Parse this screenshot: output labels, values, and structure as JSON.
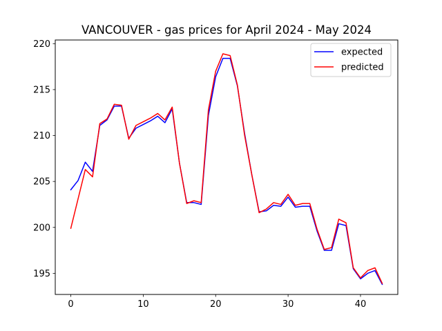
{
  "chart_data": {
    "type": "line",
    "title": "VANCOUVER - gas prices for April 2024 - May 2024",
    "xlabel": "",
    "ylabel": "",
    "xlim": [
      -2.15,
      45.15
    ],
    "ylim": [
      192.7,
      220.4
    ],
    "xticks": [
      0,
      10,
      20,
      30,
      40
    ],
    "yticks": [
      195,
      200,
      205,
      210,
      215,
      220
    ],
    "grid": false,
    "legend_position": "top-right",
    "x": [
      0,
      1,
      2,
      3,
      4,
      5,
      6,
      7,
      8,
      9,
      10,
      11,
      12,
      13,
      14,
      15,
      16,
      17,
      18,
      19,
      20,
      21,
      22,
      23,
      24,
      25,
      26,
      27,
      28,
      29,
      30,
      31,
      32,
      33,
      34,
      35,
      36,
      37,
      38,
      39,
      40,
      41,
      42,
      43
    ],
    "series": [
      {
        "name": "expected",
        "color": "#0000ff",
        "values": [
          204.1,
          205.1,
          207.1,
          206.1,
          211.1,
          211.7,
          213.2,
          213.2,
          209.7,
          210.8,
          211.2,
          211.6,
          212.1,
          211.4,
          212.9,
          207.0,
          202.7,
          202.7,
          202.5,
          212.2,
          216.4,
          218.4,
          218.4,
          215.4,
          210.2,
          205.7,
          201.7,
          201.8,
          202.4,
          202.3,
          203.3,
          202.2,
          202.3,
          202.3,
          199.6,
          197.5,
          197.5,
          200.4,
          200.2,
          195.5,
          194.4,
          195.0,
          195.3,
          193.8
        ]
      },
      {
        "name": "predicted",
        "color": "#ff0000",
        "values": [
          199.9,
          203.1,
          206.3,
          205.5,
          211.3,
          211.8,
          213.4,
          213.3,
          209.6,
          211.1,
          211.5,
          211.9,
          212.4,
          211.7,
          213.1,
          207.0,
          202.6,
          202.9,
          202.7,
          212.8,
          217.0,
          218.9,
          218.7,
          215.5,
          210.0,
          205.7,
          201.6,
          202.0,
          202.7,
          202.5,
          203.6,
          202.4,
          202.6,
          202.6,
          199.8,
          197.6,
          197.8,
          200.9,
          200.5,
          195.6,
          194.5,
          195.3,
          195.6,
          193.9
        ]
      }
    ]
  }
}
